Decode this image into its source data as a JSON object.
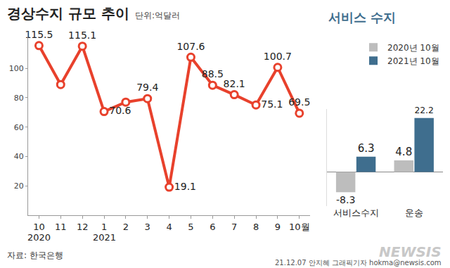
{
  "chart_data": [
    {
      "type": "line",
      "title": "경상수지 규모 추이",
      "subtitle": "단위:억달러",
      "categories": [
        "10",
        "11",
        "12",
        "1",
        "2",
        "3",
        "4",
        "5",
        "6",
        "7",
        "8",
        "9",
        "10월"
      ],
      "values": [
        115.5,
        89,
        115.1,
        70.6,
        77,
        79.4,
        19.1,
        107.6,
        88.5,
        82.1,
        75.1,
        100.7,
        69.5
      ],
      "value_labels": [
        "115.5",
        null,
        "115.1",
        "70.6",
        null,
        "79.4",
        "19.1",
        "107.6",
        "88.5",
        "82.1",
        "75.1",
        "100.7",
        "69.5"
      ],
      "data_labels": true,
      "color": "#e8412c",
      "marker": "circle",
      "ylim": [
        0,
        125
      ],
      "yticks": [
        20,
        40,
        60,
        80,
        100
      ],
      "grid": false,
      "annotations": [
        {
          "text": "2020",
          "x": 0
        },
        {
          "text": "2021",
          "x": 3
        }
      ],
      "source": "자료: 한국은행",
      "credit": "21.12.07 안지혜 그래픽기자 hokma@newsis.com",
      "watermark": "NEWSIS"
    },
    {
      "type": "bar",
      "title": "서비스 수지",
      "categories": [
        "서비스수지",
        "운송"
      ],
      "series": [
        {
          "name": "2020년 10월",
          "color": "#bdbdbd",
          "values": [
            -8.3,
            4.8
          ]
        },
        {
          "name": "2021년 10월",
          "color": "#3f6e8e",
          "values": [
            6.3,
            22.2
          ]
        }
      ],
      "ylim": [
        -14,
        26
      ],
      "tick_labels": "x",
      "data_labels": true,
      "legend": "upper right",
      "grid": false
    }
  ]
}
